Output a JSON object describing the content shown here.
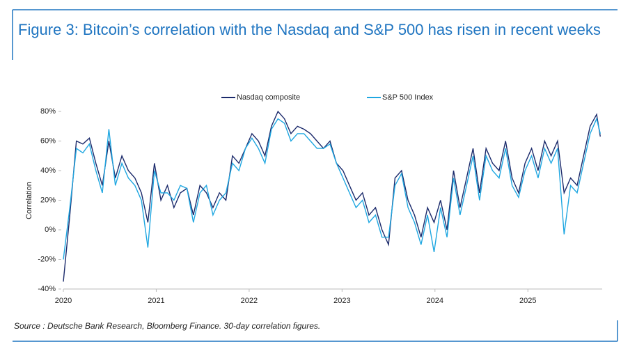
{
  "chart_data": {
    "type": "line",
    "title": "Figure 3: Bitcoin’s correlation with the Nasdaq and S&P 500 has risen in recent weeks",
    "source": "Source : Deutsche Bank Research, Bloomberg Finance. 30-day correlation figures.",
    "y_label": "Correlation",
    "x": [
      2020,
      2020.07,
      2020.14,
      2020.21,
      2020.28,
      2020.35,
      2020.42,
      2020.49,
      2020.56,
      2020.63,
      2020.7,
      2020.77,
      2020.84,
      2020.91,
      2020.98,
      2021.05,
      2021.12,
      2021.19,
      2021.26,
      2021.33,
      2021.4,
      2021.47,
      2021.54,
      2021.61,
      2021.68,
      2021.75,
      2021.82,
      2021.89,
      2021.96,
      2022.03,
      2022.1,
      2022.17,
      2022.24,
      2022.31,
      2022.38,
      2022.45,
      2022.52,
      2022.59,
      2022.66,
      2022.73,
      2022.8,
      2022.87,
      2022.94,
      2023.01,
      2023.08,
      2023.15,
      2023.22,
      2023.29,
      2023.36,
      2023.43,
      2023.5,
      2023.57,
      2023.64,
      2023.71,
      2023.78,
      2023.85,
      2023.92,
      2023.99,
      2024.06,
      2024.13,
      2024.2,
      2024.27,
      2024.34,
      2024.41,
      2024.48,
      2024.55,
      2024.62,
      2024.69,
      2024.76,
      2024.83,
      2024.9,
      2024.97,
      2025.04,
      2025.11,
      2025.18,
      2025.25,
      2025.32,
      2025.39,
      2025.46,
      2025.53,
      2025.6,
      2025.67,
      2025.74,
      2025.78
    ],
    "series": [
      {
        "name": "Nasdaq composite",
        "color": "#1b2a6b",
        "values": [
          -35,
          10,
          60,
          58,
          62,
          45,
          30,
          60,
          35,
          50,
          40,
          35,
          25,
          5,
          45,
          20,
          30,
          15,
          25,
          28,
          10,
          30,
          25,
          15,
          25,
          20,
          50,
          45,
          55,
          65,
          60,
          50,
          70,
          80,
          75,
          65,
          70,
          68,
          65,
          60,
          55,
          60,
          45,
          40,
          30,
          20,
          25,
          10,
          15,
          0,
          -10,
          35,
          40,
          20,
          10,
          -5,
          15,
          5,
          20,
          0,
          40,
          15,
          35,
          55,
          25,
          55,
          45,
          40,
          60,
          35,
          25,
          45,
          55,
          40,
          60,
          50,
          60,
          25,
          35,
          30,
          50,
          70,
          78,
          63
        ]
      },
      {
        "name": "S&P 500 Index",
        "color": "#1fa7e1",
        "values": [
          -20,
          15,
          55,
          52,
          58,
          40,
          25,
          68,
          30,
          45,
          35,
          30,
          20,
          -12,
          40,
          25,
          25,
          20,
          30,
          28,
          5,
          25,
          30,
          10,
          20,
          25,
          45,
          40,
          55,
          62,
          55,
          45,
          68,
          75,
          72,
          60,
          65,
          65,
          60,
          55,
          55,
          58,
          45,
          35,
          25,
          15,
          20,
          5,
          10,
          -5,
          -5,
          30,
          38,
          15,
          5,
          -10,
          10,
          -15,
          15,
          -5,
          35,
          10,
          30,
          50,
          20,
          50,
          40,
          35,
          55,
          30,
          22,
          40,
          50,
          35,
          55,
          45,
          55,
          -3,
          30,
          25,
          45,
          65,
          75,
          65
        ]
      }
    ],
    "xlim": [
      2020,
      2025.8
    ],
    "xticks": [
      2020,
      2021,
      2022,
      2023,
      2024,
      2025
    ],
    "ylim": [
      -40,
      80
    ],
    "yticks": [
      {
        "value": -40,
        "label": "-40%"
      },
      {
        "value": -20,
        "label": "-20%"
      },
      {
        "value": 0,
        "label": "0%"
      },
      {
        "value": 20,
        "label": "20%"
      },
      {
        "value": 40,
        "label": "40%"
      },
      {
        "value": 60,
        "label": "60%"
      },
      {
        "value": 80,
        "label": "80%"
      }
    ]
  }
}
